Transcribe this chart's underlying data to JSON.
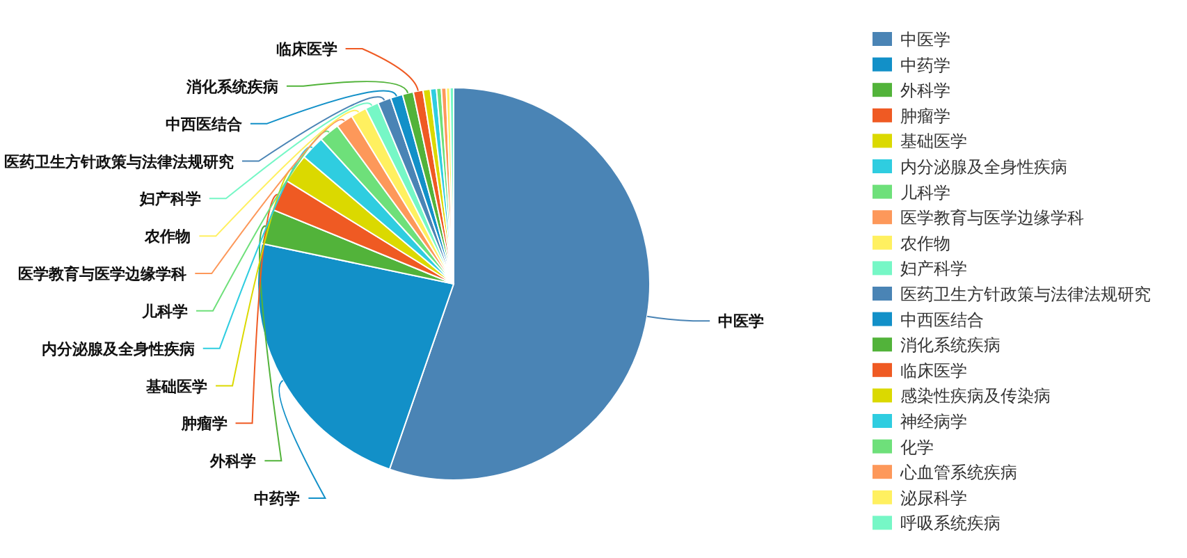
{
  "chart_data": {
    "type": "pie",
    "categories": [
      "中医学",
      "中药学",
      "外科学",
      "肿瘤学",
      "基础医学",
      "内分泌腺及全身性疾病",
      "儿科学",
      "医学教育与医学边缘学科",
      "农作物",
      "妇产科学",
      "医药卫生方针政策与法律法规研究",
      "中西医结合",
      "消化系统疾病",
      "临床医学",
      "感染性疾病及传染病",
      "神经病学",
      "化学",
      "心血管系统疾病",
      "泌尿科学",
      "呼吸系统疾病"
    ],
    "values": [
      55.3,
      23.0,
      2.9,
      2.6,
      2.4,
      2.0,
      1.7,
      1.4,
      1.3,
      1.1,
      1.1,
      1.0,
      0.9,
      0.8,
      0.6,
      0.5,
      0.4,
      0.4,
      0.3,
      0.3
    ],
    "colors": [
      "#4a84b5",
      "#1290c8",
      "#52b33a",
      "#ef5a23",
      "#dbd900",
      "#2fcde0",
      "#6ee07a",
      "#fd985a",
      "#fff060",
      "#76f7c6",
      "#4a84b5",
      "#1290c8",
      "#52b33a",
      "#ef5a23",
      "#dbd900",
      "#2fcde0",
      "#6ee07a",
      "#fd985a",
      "#fff060",
      "#76f7c6"
    ],
    "value_labels": [
      "中医学",
      "中药学",
      "外科学",
      "肿瘤学",
      "基础医学",
      "内分泌腺及全身性疾病",
      "儿科学",
      "医学教育与医学边缘学科",
      "农作物",
      "妇产科学",
      "医药卫生方针政策与法律法规研究",
      "中西医结合",
      "消化系统疾病",
      "临床医学",
      null,
      null,
      null,
      null,
      null,
      null
    ],
    "legend": "right"
  }
}
